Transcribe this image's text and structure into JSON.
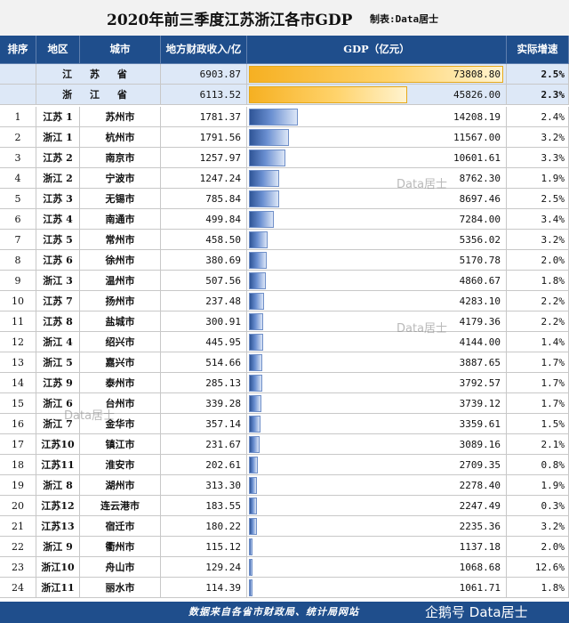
{
  "title": "2020年前三季度江苏浙江各市GDP",
  "credit": "制表:Data居士",
  "headers": {
    "rank": "排序",
    "region": "地区",
    "city": "城市",
    "revenue": "地方财政收入/亿",
    "gdp": "GDP（亿元）",
    "growth": "实际增速"
  },
  "watermark": "Data居士",
  "source": "数据来自各省市财政局、统计局网站",
  "logo": "企鹅号 Data居士",
  "colors": {
    "header_bg": "#1f4e8c",
    "province_row_bg": "#dde8f7",
    "bar_city": "#2f5597",
    "bar_province": "#f6b022"
  },
  "chart_data": {
    "type": "table",
    "gdp_max": 73808.8,
    "provinces": [
      {
        "name": "江 苏 省",
        "revenue": "6903.87",
        "gdp": 73808.8,
        "gdp_label": "73808.80",
        "growth": "2.5%"
      },
      {
        "name": "浙 江 省",
        "revenue": "6113.52",
        "gdp": 45826.0,
        "gdp_label": "45826.00",
        "growth": "2.3%"
      }
    ],
    "cities": [
      {
        "rank": "1",
        "region": "江苏 1",
        "city": "苏州市",
        "revenue": "1781.37",
        "gdp": 14208.19,
        "gdp_label": "14208.19",
        "growth": "2.4%"
      },
      {
        "rank": "2",
        "region": "浙江 1",
        "city": "杭州市",
        "revenue": "1791.56",
        "gdp": 11567.0,
        "gdp_label": "11567.00",
        "growth": "3.2%"
      },
      {
        "rank": "3",
        "region": "江苏 2",
        "city": "南京市",
        "revenue": "1257.97",
        "gdp": 10601.61,
        "gdp_label": "10601.61",
        "growth": "3.3%"
      },
      {
        "rank": "4",
        "region": "浙江 2",
        "city": "宁波市",
        "revenue": "1247.24",
        "gdp": 8762.3,
        "gdp_label": "8762.30",
        "growth": "1.9%"
      },
      {
        "rank": "5",
        "region": "江苏 3",
        "city": "无锡市",
        "revenue": "785.84",
        "gdp": 8697.46,
        "gdp_label": "8697.46",
        "growth": "2.5%"
      },
      {
        "rank": "6",
        "region": "江苏 4",
        "city": "南通市",
        "revenue": "499.84",
        "gdp": 7284.0,
        "gdp_label": "7284.00",
        "growth": "3.4%"
      },
      {
        "rank": "7",
        "region": "江苏 5",
        "city": "常州市",
        "revenue": "458.50",
        "gdp": 5356.02,
        "gdp_label": "5356.02",
        "growth": "3.2%"
      },
      {
        "rank": "8",
        "region": "江苏 6",
        "city": "徐州市",
        "revenue": "380.69",
        "gdp": 5170.78,
        "gdp_label": "5170.78",
        "growth": "2.0%"
      },
      {
        "rank": "9",
        "region": "浙江 3",
        "city": "温州市",
        "revenue": "507.56",
        "gdp": 4860.67,
        "gdp_label": "4860.67",
        "growth": "1.8%"
      },
      {
        "rank": "10",
        "region": "江苏 7",
        "city": "扬州市",
        "revenue": "237.48",
        "gdp": 4283.1,
        "gdp_label": "4283.10",
        "growth": "2.2%"
      },
      {
        "rank": "11",
        "region": "江苏 8",
        "city": "盐城市",
        "revenue": "300.91",
        "gdp": 4179.36,
        "gdp_label": "4179.36",
        "growth": "2.2%"
      },
      {
        "rank": "12",
        "region": "浙江 4",
        "city": "绍兴市",
        "revenue": "445.95",
        "gdp": 4144.0,
        "gdp_label": "4144.00",
        "growth": "1.4%"
      },
      {
        "rank": "13",
        "region": "浙江 5",
        "city": "嘉兴市",
        "revenue": "514.66",
        "gdp": 3887.65,
        "gdp_label": "3887.65",
        "growth": "1.7%"
      },
      {
        "rank": "14",
        "region": "江苏 9",
        "city": "泰州市",
        "revenue": "285.13",
        "gdp": 3792.57,
        "gdp_label": "3792.57",
        "growth": "1.7%"
      },
      {
        "rank": "15",
        "region": "浙江 6",
        "city": "台州市",
        "revenue": "339.28",
        "gdp": 3739.12,
        "gdp_label": "3739.12",
        "growth": "1.7%"
      },
      {
        "rank": "16",
        "region": "浙江 7",
        "city": "金华市",
        "revenue": "357.14",
        "gdp": 3359.61,
        "gdp_label": "3359.61",
        "growth": "1.5%"
      },
      {
        "rank": "17",
        "region": "江苏10",
        "city": "镇江市",
        "revenue": "231.67",
        "gdp": 3089.16,
        "gdp_label": "3089.16",
        "growth": "2.1%"
      },
      {
        "rank": "18",
        "region": "江苏11",
        "city": "淮安市",
        "revenue": "202.61",
        "gdp": 2709.35,
        "gdp_label": "2709.35",
        "growth": "0.8%"
      },
      {
        "rank": "19",
        "region": "浙江 8",
        "city": "湖州市",
        "revenue": "313.30",
        "gdp": 2278.4,
        "gdp_label": "2278.40",
        "growth": "1.9%"
      },
      {
        "rank": "20",
        "region": "江苏12",
        "city": "连云港市",
        "revenue": "183.55",
        "gdp": 2247.49,
        "gdp_label": "2247.49",
        "growth": "0.3%"
      },
      {
        "rank": "21",
        "region": "江苏13",
        "city": "宿迁市",
        "revenue": "180.22",
        "gdp": 2235.36,
        "gdp_label": "2235.36",
        "growth": "3.2%"
      },
      {
        "rank": "22",
        "region": "浙江 9",
        "city": "衢州市",
        "revenue": "115.12",
        "gdp": 1137.18,
        "gdp_label": "1137.18",
        "growth": "2.0%"
      },
      {
        "rank": "23",
        "region": "浙江10",
        "city": "舟山市",
        "revenue": "129.24",
        "gdp": 1068.68,
        "gdp_label": "1068.68",
        "growth": "12.6%"
      },
      {
        "rank": "24",
        "region": "浙江11",
        "city": "丽水市",
        "revenue": "114.39",
        "gdp": 1061.71,
        "gdp_label": "1061.71",
        "growth": "1.8%"
      }
    ]
  }
}
